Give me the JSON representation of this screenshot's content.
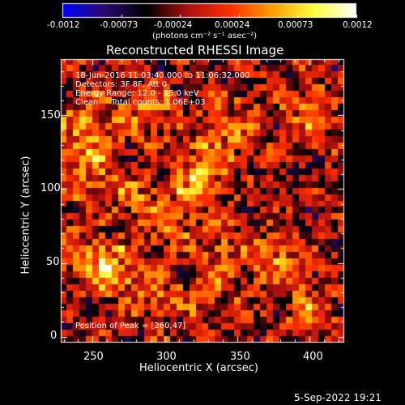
{
  "chart_data": {
    "type": "heatmap",
    "title": "Reconstructed RHESSI Image",
    "xlabel": "Heliocentric X (arcsec)",
    "ylabel": "Heliocentric Y (arcsec)",
    "xlim": [
      228,
      424
    ],
    "ylim": [
      -4,
      188
    ],
    "x_ticks": [
      250,
      300,
      350,
      400
    ],
    "y_ticks": [
      0,
      50,
      100,
      150
    ],
    "colorbar": {
      "ticks": [
        "-0.0012",
        "-0.00073",
        "-0.00024",
        "0.00024",
        "0.00073",
        "0.0012"
      ],
      "range": [
        -0.0012,
        0.0012
      ],
      "unit_label": "(photons cm⁻² s⁻¹ asec⁻²)",
      "colormap": [
        "#0000ff",
        "#2a0a6e",
        "#000000",
        "#b01010",
        "#ff3000",
        "#ffa000",
        "#ffff40",
        "#ffffff"
      ]
    },
    "annotations": [
      "18-Jun-2016 11:03:40.000 to 11:06:32.000",
      "Detectors: 3F 8F, Att 0",
      "Energy Range: 12.0 - 25.0 keV",
      "Clean     Total counts: 1.06E+03"
    ],
    "peak_label": "Position of Peak = [260,47]",
    "peak": [
      260,
      47
    ],
    "grid_size": 44,
    "blobs": [
      {
        "x": 260,
        "y": 47,
        "a": 1.0,
        "r": 7
      },
      {
        "x": 325,
        "y": 110,
        "a": 0.85,
        "r": 8
      },
      {
        "x": 250,
        "y": 140,
        "a": 0.7,
        "r": 9
      },
      {
        "x": 290,
        "y": 150,
        "a": 0.6,
        "r": 8
      },
      {
        "x": 300,
        "y": 80,
        "a": 0.55,
        "r": 9
      },
      {
        "x": 380,
        "y": 50,
        "a": 0.55,
        "r": 8
      },
      {
        "x": 240,
        "y": 110,
        "a": 0.5,
        "r": 8
      },
      {
        "x": 345,
        "y": 140,
        "a": 0.5,
        "r": 9
      },
      {
        "x": 400,
        "y": 150,
        "a": 0.5,
        "r": 8
      },
      {
        "x": 270,
        "y": 100,
        "a": 0.45,
        "r": 8
      },
      {
        "x": 340,
        "y": 60,
        "a": 0.4,
        "r": 9
      },
      {
        "x": 400,
        "y": 20,
        "a": 0.45,
        "r": 8
      },
      {
        "x": 240,
        "y": 60,
        "a": 0.45,
        "r": 8
      },
      {
        "x": 330,
        "y": 30,
        "a": 0.4,
        "r": 9
      },
      {
        "x": 290,
        "y": 30,
        "a": 0.45,
        "r": 8
      }
    ]
  },
  "footer": {
    "date": "5-Sep-2022 19:21"
  }
}
